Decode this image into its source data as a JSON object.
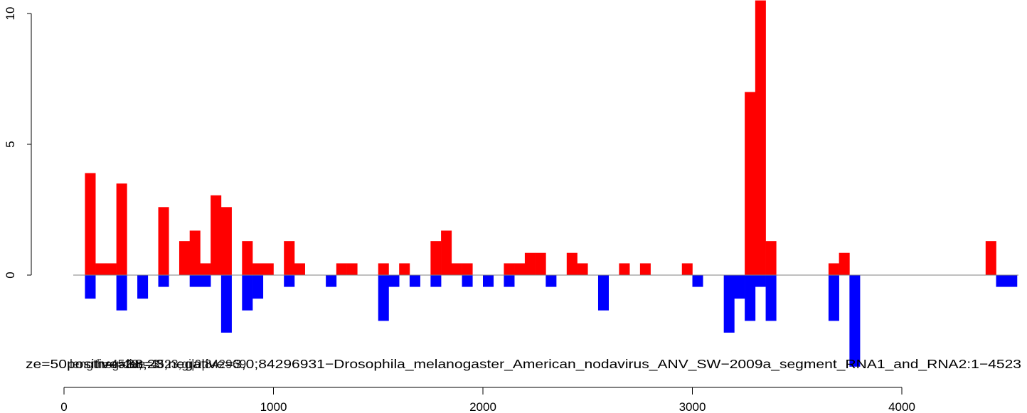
{
  "chart_data": {
    "type": "bar",
    "x_axis": {
      "ticks": [
        0,
        1000,
        2000,
        3000,
        4000
      ],
      "range": [
        -150,
        4600
      ]
    },
    "y_axis": {
      "ticks": [
        0,
        5,
        10
      ],
      "range": [
        -3.5,
        10.5
      ]
    },
    "bar_width": 50,
    "annotation": "ze=50positive=38,23;negative=3,042-3520 1...",
    "annotation_left": "ze=50",
    "annotation_line1": "positive=38,23;",
    "annotation_line2": "length=4523;",
    "annotation_line3": "negative=3",
    "annotation_right": "len=4523;gi|0|842969",
    "annotation_tail": "31−Drosophila_melanogaster_American_nodavirus_ANV_SW−2009a_segment_RNA1_and_RNA2:1−4523",
    "colors": {
      "positive": "#ff0000",
      "negative": "#0000ff",
      "baseline": "#808080"
    },
    "series": [
      {
        "name": "positive",
        "bars": [
          [
            100,
            3.9
          ],
          [
            150,
            0.45
          ],
          [
            200,
            0.45
          ],
          [
            250,
            3.5
          ],
          [
            450,
            2.6
          ],
          [
            550,
            1.3
          ],
          [
            600,
            1.7
          ],
          [
            650,
            0.45
          ],
          [
            700,
            3.05
          ],
          [
            750,
            2.6
          ],
          [
            850,
            1.3
          ],
          [
            900,
            0.45
          ],
          [
            950,
            0.45
          ],
          [
            1050,
            1.3
          ],
          [
            1100,
            0.45
          ],
          [
            1300,
            0.45
          ],
          [
            1350,
            0.45
          ],
          [
            1500,
            0.45
          ],
          [
            1600,
            0.45
          ],
          [
            1750,
            1.3
          ],
          [
            1800,
            1.7
          ],
          [
            1850,
            0.45
          ],
          [
            1900,
            0.45
          ],
          [
            2100,
            0.45
          ],
          [
            2150,
            0.45
          ],
          [
            2200,
            0.85
          ],
          [
            2250,
            0.85
          ],
          [
            2400,
            0.85
          ],
          [
            2450,
            0.45
          ],
          [
            2650,
            0.45
          ],
          [
            2750,
            0.45
          ],
          [
            2950,
            0.45
          ],
          [
            3250,
            7.0
          ],
          [
            3300,
            10.5
          ],
          [
            3350,
            1.3
          ],
          [
            3650,
            0.45
          ],
          [
            3700,
            0.85
          ],
          [
            4400,
            1.3
          ]
        ]
      },
      {
        "name": "negative",
        "bars": [
          [
            100,
            -0.9
          ],
          [
            250,
            -1.35
          ],
          [
            350,
            -0.9
          ],
          [
            450,
            -0.45
          ],
          [
            600,
            -0.45
          ],
          [
            650,
            -0.45
          ],
          [
            750,
            -2.2
          ],
          [
            850,
            -1.35
          ],
          [
            900,
            -0.9
          ],
          [
            1050,
            -0.45
          ],
          [
            1250,
            -0.45
          ],
          [
            1500,
            -1.75
          ],
          [
            1550,
            -0.45
          ],
          [
            1650,
            -0.45
          ],
          [
            1750,
            -0.45
          ],
          [
            1900,
            -0.45
          ],
          [
            2000,
            -0.45
          ],
          [
            2100,
            -0.45
          ],
          [
            2300,
            -0.45
          ],
          [
            2550,
            -1.35
          ],
          [
            3000,
            -0.45
          ],
          [
            3150,
            -2.2
          ],
          [
            3200,
            -0.9
          ],
          [
            3250,
            -1.75
          ],
          [
            3300,
            -0.45
          ],
          [
            3350,
            -1.75
          ],
          [
            3650,
            -1.75
          ],
          [
            3750,
            -3.5
          ],
          [
            4450,
            -0.45
          ],
          [
            4500,
            -0.45
          ]
        ]
      }
    ]
  }
}
